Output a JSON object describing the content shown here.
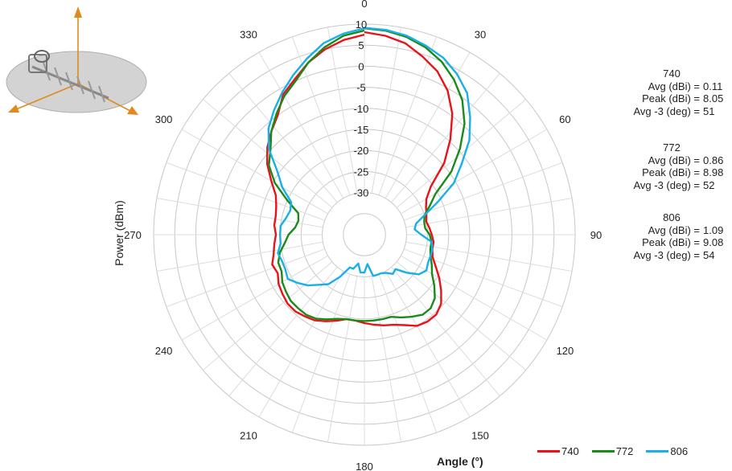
{
  "chart_data": {
    "type": "polar-line",
    "xlabel": "Angle (°)",
    "ylabel": "Power (dBm)",
    "radial_ticks": [
      10,
      5,
      0,
      -5,
      -10,
      -15,
      -20,
      -25,
      -30
    ],
    "radial_range": [
      -35,
      10
    ],
    "angle_ticks": [
      0,
      30,
      60,
      90,
      120,
      150,
      180,
      210,
      240,
      270,
      300,
      330
    ],
    "grid": true,
    "legend_position": "bottom-right",
    "series": [
      {
        "name": "740",
        "color": "#e8131a",
        "stats": {
          "avg_dbi": "0.11",
          "peak_dbi": "8.05",
          "avg3_deg": "51"
        },
        "values": [
          8.1,
          7.5,
          6.5,
          4.5,
          2.5,
          -0.5,
          -4.5,
          -9.5,
          -14.5,
          -20.5,
          -23,
          -24,
          -24.5,
          -25,
          -24.5,
          -24,
          -23.5,
          -23.5,
          -23,
          -21.5,
          -19.5,
          -17.5,
          -15.5,
          -14.5,
          -14.5,
          -15,
          -16.5,
          -17.5,
          -18,
          -18.5,
          -19,
          -19.5,
          -19.5,
          -18.5,
          -17.5,
          -16.5,
          -16,
          -15.5,
          -15.5,
          -16,
          -16.5,
          -17.5,
          -17,
          -18,
          -18.5,
          -19,
          -18.5,
          -18.5,
          -18,
          -17,
          -14.5,
          -11.5,
          -9,
          -7,
          -5,
          -1.5,
          0.5,
          3,
          5,
          6.5,
          7.5
        ]
      },
      {
        "name": "772",
        "color": "#1a8a1a",
        "stats": {
          "avg_dbi": "0.86",
          "peak_dbi": "8.98",
          "avg3_deg": "52"
        },
        "values": [
          9.0,
          8.7,
          8.0,
          6.8,
          5.0,
          2.5,
          -0.5,
          -4.5,
          -9.5,
          -14.5,
          -20.5,
          -23,
          -25,
          -25.5,
          -25.5,
          -24.5,
          -24,
          -24,
          -23.5,
          -22.5,
          -21.5,
          -19.5,
          -17.5,
          -16.5,
          -16.5,
          -17.5,
          -18.5,
          -19.5,
          -19.5,
          -19.5,
          -19.5,
          -19.5,
          -19.5,
          -19,
          -18,
          -17,
          -16.5,
          -16.5,
          -16.5,
          -17,
          -17.5,
          -18.5,
          -18.5,
          -19.5,
          -21,
          -22,
          -23.5,
          -24,
          -23.5,
          -20,
          -15.5,
          -12,
          -10,
          -7,
          -4.5,
          -2,
          0,
          3,
          5.5,
          7.5,
          8.5
        ]
      },
      {
        "name": "806",
        "color": "#1aafe6",
        "stats": {
          "avg_dbi": "1.09",
          "peak_dbi": "9.08",
          "avg3_deg": "54"
        },
        "values": [
          9.1,
          8.9,
          8.3,
          7.2,
          6.0,
          4.0,
          1.5,
          -2.5,
          -6.5,
          -11.5,
          -15.5,
          -21,
          -25,
          -27.5,
          -28,
          -26.5,
          -24,
          -23.5,
          -23.5,
          -23.5,
          -23,
          -24,
          -26.5,
          -29,
          -28.5,
          -29.5,
          -30,
          -30,
          -30,
          -33,
          -31,
          -31,
          -33,
          -31.5,
          -31.5,
          -28.5,
          -25.5,
          -24,
          -22,
          -20.5,
          -19,
          -19.5,
          -19.5,
          -19,
          -20,
          -20,
          -20,
          -21,
          -21.5,
          -21,
          -17.5,
          -14.5,
          -9.5,
          -6,
          -3.5,
          -1,
          1.5,
          4,
          6.5,
          8,
          9
        ]
      }
    ]
  },
  "stats_labels": {
    "avg": "Avg (dBi) =",
    "peak": "Peak (dBi) =",
    "avg3": "Avg -3 (deg) ="
  }
}
